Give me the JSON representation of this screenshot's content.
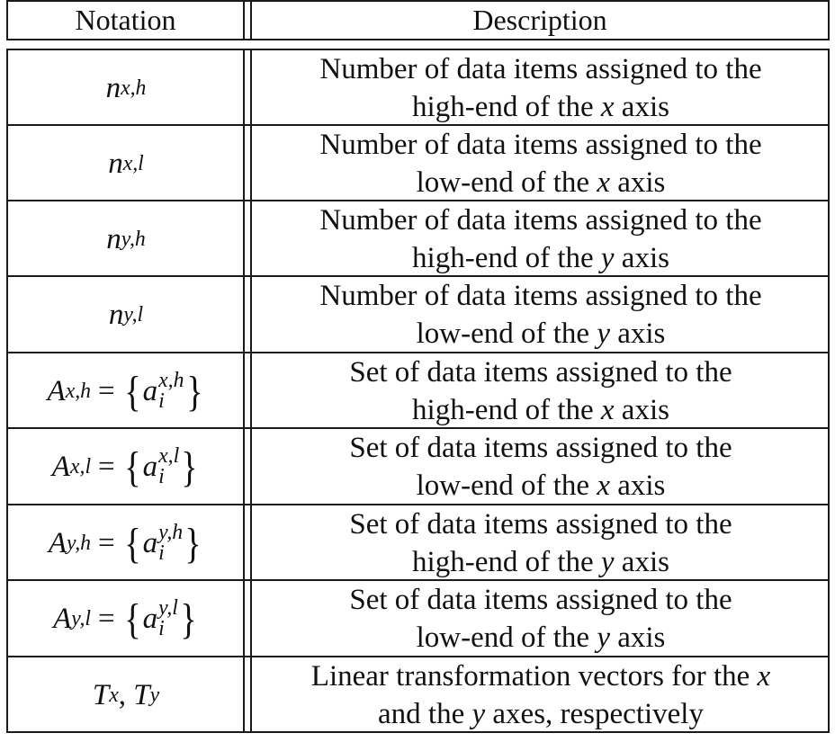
{
  "table": {
    "headers": {
      "notation": "Notation",
      "description": "Description"
    },
    "rows": [
      {
        "notation": {
          "base": "n",
          "sub": "x,h"
        },
        "line1": "Number of data items assigned to the",
        "line2_pre": "high-end of the ",
        "line2_var": "x",
        "line2_post": " axis"
      },
      {
        "notation": {
          "base": "n",
          "sub": "x,l"
        },
        "line1": "Number of data items assigned to the",
        "line2_pre": "low-end of the ",
        "line2_var": "x",
        "line2_post": " axis"
      },
      {
        "notation": {
          "base": "n",
          "sub": "y,h"
        },
        "line1": "Number of data items assigned to the",
        "line2_pre": "high-end of the ",
        "line2_var": "y",
        "line2_post": " axis"
      },
      {
        "notation": {
          "base": "n",
          "sub": "y,l"
        },
        "line1": "Number of data items assigned to the",
        "line2_pre": "low-end of the ",
        "line2_var": "y",
        "line2_post": " axis"
      },
      {
        "notation": {
          "base": "A",
          "sup": "x,h",
          "eq": "=",
          "open": "{",
          "elem": "a",
          "elem_sup": "x,h",
          "elem_sub": "i",
          "close": "}"
        },
        "line1": "Set of data items assigned to the",
        "line2_pre": "high-end of the ",
        "line2_var": "x",
        "line2_post": " axis"
      },
      {
        "notation": {
          "base": "A",
          "sup": "x,l",
          "eq": "=",
          "open": "{",
          "elem": "a",
          "elem_sup": "x,l",
          "elem_sub": "i",
          "close": "}"
        },
        "line1": "Set of data items assigned to the",
        "line2_pre": "low-end of the ",
        "line2_var": "x",
        "line2_post": " axis"
      },
      {
        "notation": {
          "base": "A",
          "sup": "y,h",
          "eq": "=",
          "open": "{",
          "elem": "a",
          "elem_sup": "y,h",
          "elem_sub": "i",
          "close": "}"
        },
        "line1": "Set of data items assigned to the",
        "line2_pre": "high-end of the ",
        "line2_var": "y",
        "line2_post": " axis"
      },
      {
        "notation": {
          "base": "A",
          "sup": "y,l",
          "eq": "=",
          "open": "{",
          "elem": "a",
          "elem_sup": "y,l",
          "elem_sub": "i",
          "close": "}"
        },
        "line1": "Set of data items assigned to the",
        "line2_pre": "low-end of the ",
        "line2_var": "y",
        "line2_post": " axis"
      },
      {
        "notation": {
          "t1": "T",
          "t1_sub": "x",
          "sep": ", ",
          "t2": "T",
          "t2_sub": "y"
        },
        "line1_pre": "Linear transformation vectors for the ",
        "line1_var": "x",
        "line2_pre": "and the ",
        "line2_var": "y",
        "line2_post": " axes, respectively"
      }
    ]
  }
}
